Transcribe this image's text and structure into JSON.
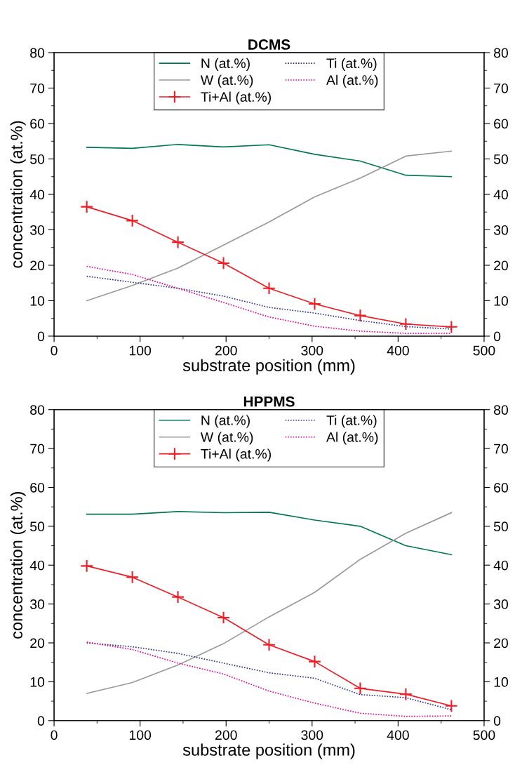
{
  "chart_data": [
    {
      "type": "line",
      "title": "DCMS",
      "xlabel": "substrate position (mm)",
      "ylabel": "concentration (at.%)",
      "x": [
        38,
        91,
        144,
        197,
        250,
        303,
        356,
        409,
        462
      ],
      "xlim": [
        0,
        500
      ],
      "xticks": [
        0,
        100,
        200,
        300,
        400,
        500
      ],
      "ylim": [
        0,
        80
      ],
      "yticks": [
        0,
        10,
        20,
        30,
        40,
        50,
        60,
        70,
        80
      ],
      "y2lim": [
        0,
        80
      ],
      "y2ticks": [
        0,
        10,
        20,
        30,
        40,
        50,
        60,
        70,
        80
      ],
      "grid": false,
      "legend": "top",
      "series": [
        {
          "name": "N (at.%)",
          "color": "#007a4d",
          "marker": "none",
          "line_style": "solid",
          "values": [
            53.3,
            53.0,
            54.1,
            53.4,
            54.0,
            51.3,
            49.4,
            45.4,
            45.0
          ]
        },
        {
          "name": "W (at.%)",
          "color": "#999999",
          "marker": "none",
          "line_style": "solid",
          "values": [
            10.0,
            14.3,
            19.2,
            25.7,
            32.2,
            39.3,
            44.6,
            50.8,
            52.2
          ]
        },
        {
          "name": "Ti+Al (at.%)",
          "color": "#ee1c25",
          "marker": "cross",
          "line_style": "solid",
          "values": [
            36.5,
            32.6,
            26.5,
            20.6,
            13.5,
            9.1,
            5.8,
            3.4,
            2.6
          ]
        },
        {
          "name": "Ti (at.%)",
          "color": "#2e3192",
          "marker": "none",
          "line_style": "dotted",
          "values": [
            16.9,
            15.2,
            13.5,
            11.3,
            8.1,
            6.5,
            4.4,
            2.7,
            2.0
          ]
        },
        {
          "name": "Al (at.%)",
          "color": "#ec008c",
          "marker": "none",
          "line_style": "dotted",
          "values": [
            19.7,
            17.4,
            13.5,
            9.5,
            5.4,
            2.8,
            1.4,
            0.8,
            0.8
          ]
        }
      ]
    },
    {
      "type": "line",
      "title": "HPPMS",
      "xlabel": "substrate position (mm)",
      "ylabel": "concentration (at.%)",
      "x": [
        38,
        91,
        144,
        197,
        250,
        303,
        356,
        409,
        462
      ],
      "xlim": [
        0,
        500
      ],
      "xticks": [
        0,
        100,
        200,
        300,
        400,
        500
      ],
      "ylim": [
        0,
        80
      ],
      "yticks": [
        0,
        10,
        20,
        30,
        40,
        50,
        60,
        70,
        80
      ],
      "y2lim": [
        0,
        80
      ],
      "y2ticks": [
        0,
        10,
        20,
        30,
        40,
        50,
        60,
        70,
        80
      ],
      "grid": false,
      "legend": "top",
      "series": [
        {
          "name": "N (at.%)",
          "color": "#007a4d",
          "marker": "none",
          "line_style": "solid",
          "values": [
            53.1,
            53.1,
            53.8,
            53.5,
            53.6,
            51.6,
            50.0,
            45.0,
            42.7
          ]
        },
        {
          "name": "W (at.%)",
          "color": "#999999",
          "marker": "none",
          "line_style": "solid",
          "values": [
            7.0,
            9.8,
            14.3,
            19.8,
            26.7,
            33.0,
            41.5,
            48.2,
            53.5
          ]
        },
        {
          "name": "Ti+Al (at.%)",
          "color": "#ee1c25",
          "marker": "cross",
          "line_style": "solid",
          "values": [
            39.8,
            36.9,
            31.8,
            26.5,
            19.5,
            15.2,
            8.3,
            6.8,
            3.8
          ]
        },
        {
          "name": "Ti (at.%)",
          "color": "#2e3192",
          "marker": "none",
          "line_style": "dotted",
          "values": [
            20.0,
            19.0,
            17.3,
            14.8,
            12.3,
            10.9,
            6.7,
            5.9,
            2.8
          ]
        },
        {
          "name": "Al (at.%)",
          "color": "#ec008c",
          "marker": "none",
          "line_style": "dotted",
          "values": [
            20.2,
            18.3,
            14.8,
            12.0,
            7.6,
            4.5,
            1.9,
            1.1,
            1.2
          ]
        }
      ]
    }
  ]
}
